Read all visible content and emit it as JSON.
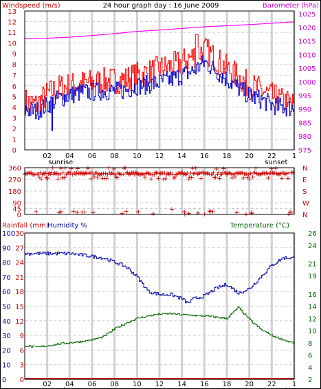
{
  "chart_data": [
    {
      "type": "line",
      "title": "24 hour graph day : 16 June 2009",
      "left_axis_label": "Windspeed (m/s)",
      "right_axis_label": "Barometer (hPa)",
      "left_ylim": [
        0,
        13
      ],
      "right_ylim": [
        975,
        1026
      ],
      "left_ticks": [
        "0",
        "1",
        "2",
        "3",
        "4",
        "5",
        "6",
        "7",
        "8",
        "9",
        "10",
        "11",
        "12",
        "13"
      ],
      "right_ticks": [
        "975",
        "980",
        "985",
        "990",
        "995",
        "1000",
        "1005",
        "1010",
        "1015",
        "1020",
        "1025"
      ],
      "x_ticks": [
        "02",
        "04",
        "06",
        "08",
        "10",
        "12",
        "14",
        "16",
        "18",
        "20",
        "22",
        "1"
      ],
      "annotations": [
        "sunrise",
        "sunset"
      ],
      "grid": true,
      "colors": {
        "gust": "#ff0000",
        "average": "#0000cc",
        "barometer": "#ff00ff"
      },
      "series": [
        {
          "key": "barometer",
          "x": [
            0,
            2,
            4,
            6,
            8,
            10,
            12,
            14,
            16,
            18,
            20,
            22,
            24
          ],
          "values": [
            1015.8,
            1016,
            1016.4,
            1017,
            1017.7,
            1018.5,
            1019,
            1019.6,
            1020.2,
            1020.6,
            1021,
            1021.5,
            1022
          ]
        },
        {
          "key": "gust",
          "x": [
            0,
            1,
            2,
            3,
            4,
            5,
            6,
            7,
            8,
            9,
            10,
            11,
            12,
            13,
            14,
            15,
            16,
            17,
            18,
            19,
            20,
            21,
            22,
            23,
            24
          ],
          "values": [
            4.5,
            4.2,
            5.2,
            5.8,
            6,
            6.2,
            6.3,
            6.4,
            6.5,
            6.6,
            7,
            7.2,
            7.6,
            7.8,
            8.2,
            8.8,
            9.4,
            8.5,
            7.6,
            6.8,
            6,
            5.6,
            5,
            4.5,
            4.2
          ]
        },
        {
          "key": "average",
          "x": [
            0,
            1,
            2,
            3,
            4,
            5,
            6,
            7,
            8,
            9,
            10,
            11,
            12,
            13,
            14,
            15,
            16,
            17,
            18,
            19,
            20,
            21,
            22,
            23,
            24
          ],
          "values": [
            3.8,
            3.6,
            4.2,
            4.8,
            5.1,
            5.4,
            5.4,
            5.5,
            5.5,
            5.6,
            6,
            6.1,
            6.3,
            6.6,
            7,
            7.4,
            8.2,
            7.4,
            6.6,
            5.8,
            5.1,
            4.7,
            4.2,
            4,
            3.9
          ]
        }
      ]
    },
    {
      "type": "scatter",
      "left_ticks": [
        "0",
        "45",
        "90",
        "180",
        "270",
        "360"
      ],
      "right_ticks": [
        "N",
        "E",
        "S",
        "W",
        "N"
      ],
      "ylim": [
        0,
        360
      ],
      "main_band": 315,
      "color": "#cc0000"
    },
    {
      "type": "line",
      "left_axis_label": "Rainfall (mm)",
      "humidity_label": "Humidity %",
      "right_axis_label": "Temperature (°C)",
      "humidity_ylim": [
        0,
        100
      ],
      "temperature_ylim": [
        2,
        26
      ],
      "humidity_ticks": [
        "0",
        "10",
        "20",
        "30",
        "40",
        "50",
        "60",
        "70",
        "80",
        "90",
        "100"
      ],
      "rain_ticks": [
        "0",
        "3",
        "6",
        "9",
        "12",
        "15",
        "18",
        "21",
        "24",
        "27",
        "30"
      ],
      "temp_ticks": [
        "2",
        "4",
        "6",
        "8",
        "10",
        "12",
        "14",
        "16",
        "19",
        "21",
        "24",
        "26"
      ],
      "x_ticks": [
        "02",
        "04",
        "06",
        "08",
        "10",
        "12",
        "14",
        "16",
        "18",
        "20",
        "22",
        "1"
      ],
      "annotations": [
        "sunrise",
        "sunset"
      ],
      "colors": {
        "humidity": "#0000aa",
        "temperature": "#006600",
        "rainfall": "#cc0000"
      },
      "series": [
        {
          "key": "humidity",
          "x": [
            0,
            1,
            2,
            3,
            4,
            5,
            6,
            7,
            8,
            9,
            10,
            11,
            12,
            13,
            14,
            14.5,
            15,
            16,
            17,
            18,
            19,
            20,
            21,
            22,
            23,
            24
          ],
          "values": [
            86,
            86,
            86,
            86,
            86,
            85,
            84,
            83,
            80,
            77,
            70,
            60,
            58,
            58,
            55,
            52,
            55,
            57,
            62,
            65,
            59,
            62,
            70,
            78,
            83,
            83
          ]
        },
        {
          "key": "temperature",
          "x": [
            0,
            1,
            2,
            3,
            4,
            5,
            6,
            7,
            8,
            9,
            10,
            11,
            12,
            13,
            14,
            15,
            16,
            17,
            18,
            19,
            20,
            21,
            22,
            23,
            24
          ],
          "values": [
            7.5,
            7.3,
            7.5,
            7.8,
            8,
            8.2,
            8.5,
            9,
            10.3,
            11.2,
            12,
            12.4,
            12.7,
            12.8,
            12.6,
            12.5,
            12.4,
            12.2,
            12,
            13.8,
            11.8,
            10.2,
            9.2,
            8.5,
            7.9
          ]
        },
        {
          "key": "rainfall",
          "x": [
            0,
            24
          ],
          "values": [
            0,
            0
          ]
        }
      ]
    }
  ]
}
